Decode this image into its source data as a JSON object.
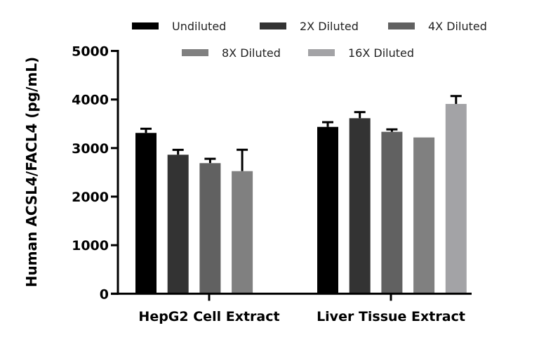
{
  "chart_data": {
    "type": "bar",
    "ylabel": "Human ACSL4/FACL4 (pg/mL)",
    "xlabel": "",
    "ylim": [
      0,
      5000
    ],
    "yticks": [
      "0",
      "1000",
      "2000",
      "3000",
      "4000",
      "5000"
    ],
    "grid": false,
    "legend_placement": "top",
    "categories": [
      "HepG2 Cell Extract",
      "Liver Tissue Extract"
    ],
    "series": [
      {
        "name": "Undiluted",
        "color": "#000000",
        "values": [
          3312,
          3436
        ],
        "errors": [
          86,
          97
        ]
      },
      {
        "name": "2X Diluted",
        "color": "#333333",
        "values": [
          2863,
          3615
        ],
        "errors": [
          100,
          125
        ]
      },
      {
        "name": "4X Diluted",
        "color": "#616161",
        "values": [
          2690,
          3335
        ],
        "errors": [
          90,
          50
        ]
      },
      {
        "name": "8X Diluted",
        "color": "#808080",
        "values": [
          2525,
          3219
        ],
        "errors": [
          440,
          0
        ]
      },
      {
        "name": "16X Diluted",
        "color": "#a3a3a6",
        "values": [
          null,
          3909
        ],
        "errors": [
          null,
          163
        ]
      }
    ]
  }
}
